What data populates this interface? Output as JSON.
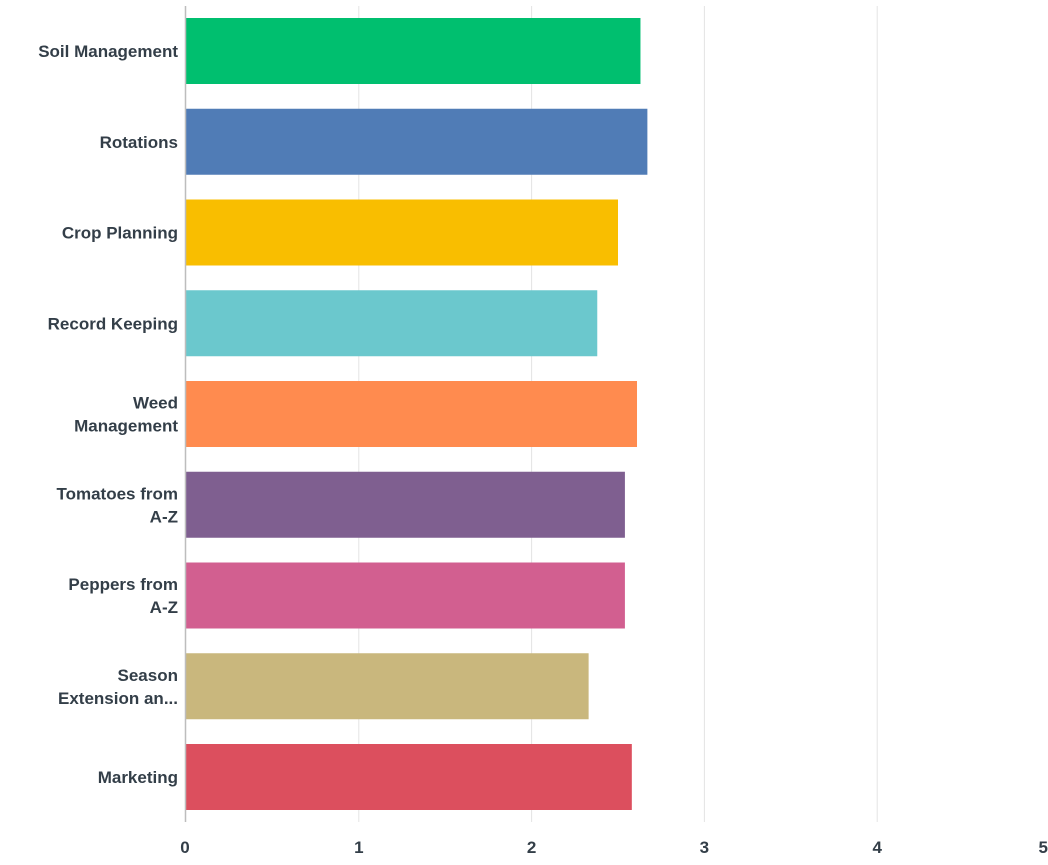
{
  "chart_data": {
    "type": "bar",
    "orientation": "horizontal",
    "categories": [
      [
        "Soil Management"
      ],
      [
        "Rotations"
      ],
      [
        "Crop Planning"
      ],
      [
        "Record Keeping"
      ],
      [
        "Weed",
        "Management"
      ],
      [
        "Tomatoes from",
        "A-Z"
      ],
      [
        "Peppers from",
        "A-Z"
      ],
      [
        "Season",
        "Extension an..."
      ],
      [
        "Marketing"
      ]
    ],
    "values": [
      2.63,
      2.67,
      2.5,
      2.38,
      2.61,
      2.54,
      2.54,
      2.33,
      2.58
    ],
    "colors": [
      "#00bf6f",
      "#507cb6",
      "#f9be00",
      "#6bc8cd",
      "#ff8b4f",
      "#7f5f90",
      "#d25f90",
      "#c9b77d",
      "#dc4f5e"
    ],
    "xlim": [
      0,
      5
    ],
    "xticks": [
      "0",
      "1",
      "2",
      "3",
      "4",
      "5"
    ],
    "grid": true,
    "title": "",
    "xlabel": "",
    "ylabel": ""
  }
}
